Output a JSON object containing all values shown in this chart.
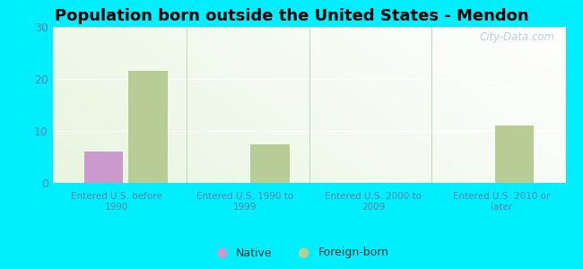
{
  "title": "Population born outside the United States - Mendon",
  "categories": [
    "Entered U.S. before\n1990",
    "Entered U.S. 1990 to\n1999",
    "Entered U.S. 2000 to\n2009",
    "Entered U.S. 2010 or\nlater"
  ],
  "native_values": [
    6,
    0,
    0,
    0
  ],
  "foreign_values": [
    21.5,
    7.5,
    0,
    11
  ],
  "native_color": "#cc99cc",
  "foreign_color": "#b8cc96",
  "ylim": [
    0,
    30
  ],
  "yticks": [
    0,
    10,
    20,
    30
  ],
  "bar_width": 0.32,
  "background_color": "#00eeff",
  "plot_bg_color": "#e8f5e0",
  "title_fontsize": 13,
  "tick_label_color": "#5588aa",
  "watermark": "City-Data.com",
  "legend_native": "Native",
  "legend_foreign": "Foreign-born"
}
